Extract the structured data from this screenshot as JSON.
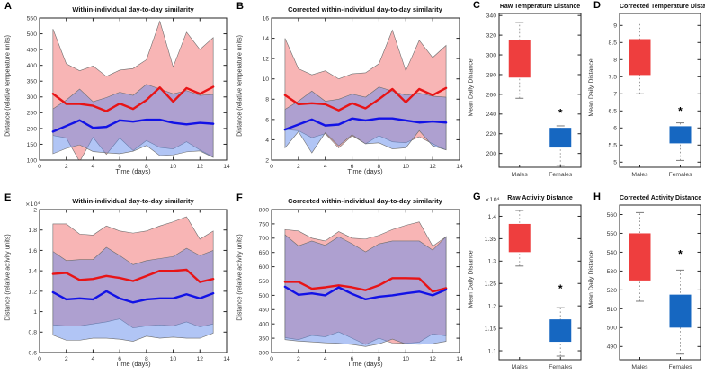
{
  "figure": {
    "background": "#ffffff"
  },
  "colors": {
    "male_line": "#e81416",
    "female_line": "#1212e6",
    "male_band": "rgba(242,108,108,0.5)",
    "female_band": "rgba(100,140,235,0.5)",
    "male_box": "#ee3e3e",
    "female_box": "#1667c1",
    "band_edge": "#6e6e6e",
    "axis": "#262626"
  },
  "chart_data": [
    {
      "id": "A",
      "letter": "A",
      "type": "area",
      "title": "Within-individual day-to-day similarity",
      "xlabel": "Time (days)",
      "ylabel": "Distance (relative temperature units)",
      "xlim": [
        0,
        14
      ],
      "ylim": [
        100,
        550
      ],
      "xticks": [
        0,
        2,
        4,
        6,
        8,
        10,
        12,
        14
      ],
      "yticks": [
        100,
        150,
        200,
        250,
        300,
        350,
        400,
        450,
        500,
        550
      ],
      "x": [
        1,
        2,
        3,
        4,
        5,
        6,
        7,
        8,
        9,
        10,
        11,
        12,
        13
      ],
      "series": [
        {
          "name": "males-mean",
          "color": "#e81416",
          "values": [
            310,
            278,
            278,
            272,
            255,
            279,
            262,
            290,
            330,
            285,
            328,
            310,
            332
          ]
        },
        {
          "name": "females-mean",
          "color": "#1212e6",
          "values": [
            190,
            208,
            226,
            202,
            205,
            226,
            222,
            228,
            228,
            218,
            213,
            218,
            215
          ]
        }
      ],
      "bands": [
        {
          "name": "males-band",
          "fill": "rgba(242,108,108,0.5)",
          "edge": "#6e6e6e",
          "upper": [
            515,
            405,
            383,
            398,
            365,
            385,
            390,
            418,
            540,
            395,
            505,
            450,
            488
          ],
          "lower": [
            178,
            170,
            95,
            172,
            118,
            170,
            130,
            162,
            140,
            135,
            158,
            132,
            110
          ]
        },
        {
          "name": "females-band",
          "fill": "rgba(100,140,235,0.5)",
          "edge": "#6e6e6e",
          "upper": [
            262,
            290,
            325,
            285,
            298,
            315,
            305,
            340,
            325,
            310,
            320,
            305,
            308
          ],
          "lower": [
            120,
            137,
            148,
            127,
            123,
            120,
            128,
            146,
            114,
            116,
            126,
            129,
            108
          ]
        }
      ]
    },
    {
      "id": "B",
      "letter": "B",
      "type": "area",
      "title": "Corrected within-individual day-to-day similarity",
      "xlabel": "Time (days)",
      "ylabel": "Distance (relative temperature units)",
      "xlim": [
        0,
        14
      ],
      "ylim": [
        2,
        16
      ],
      "xticks": [
        0,
        2,
        4,
        6,
        8,
        10,
        12,
        14
      ],
      "yticks": [
        2,
        4,
        6,
        8,
        10,
        12,
        14,
        16
      ],
      "x": [
        1,
        2,
        3,
        4,
        5,
        6,
        7,
        8,
        9,
        10,
        11,
        12,
        13
      ],
      "series": [
        {
          "name": "males-mean",
          "color": "#e81416",
          "values": [
            8.4,
            7.5,
            7.6,
            7.5,
            6.9,
            7.6,
            7.1,
            8.0,
            9.0,
            7.7,
            9.0,
            8.4,
            9.1
          ]
        },
        {
          "name": "females-mean",
          "color": "#1212e6",
          "values": [
            5.0,
            5.5,
            6.0,
            5.4,
            5.5,
            6.1,
            5.9,
            6.1,
            6.1,
            5.9,
            5.7,
            5.8,
            5.7
          ]
        }
      ],
      "bands": [
        {
          "name": "males-band",
          "fill": "rgba(242,108,108,0.5)",
          "edge": "#6e6e6e",
          "upper": [
            14.0,
            11.0,
            10.4,
            10.8,
            10.0,
            10.5,
            10.6,
            11.5,
            14.8,
            10.8,
            13.8,
            12.1,
            13.3
          ],
          "lower": [
            5.0,
            4.9,
            4.2,
            4.6,
            3.2,
            4.4,
            3.6,
            4.4,
            3.8,
            3.7,
            4.3,
            3.6,
            3.0
          ]
        },
        {
          "name": "females-band",
          "fill": "rgba(100,140,235,0.5)",
          "edge": "#6e6e6e",
          "upper": [
            7.0,
            7.8,
            8.8,
            7.8,
            8.0,
            8.5,
            8.2,
            9.2,
            8.8,
            8.4,
            8.6,
            8.3,
            8.2
          ],
          "lower": [
            3.2,
            4.8,
            2.7,
            4.7,
            3.4,
            4.5,
            3.6,
            3.7,
            3.1,
            3.2,
            4.9,
            3.4,
            3.0
          ]
        }
      ]
    },
    {
      "id": "C",
      "letter": "C",
      "type": "box",
      "title": "Raw Temperature Distance",
      "ylabel": "Mean Daily Distance",
      "categories": [
        "Males",
        "Females"
      ],
      "ylim": [
        186,
        342
      ],
      "yticks": [
        200,
        220,
        240,
        260,
        280,
        300,
        320,
        340
      ],
      "boxes": [
        {
          "name": "Males",
          "color": "#ee3e3e",
          "q1": 277,
          "q3": 315,
          "whisker_low": 256,
          "whisker_high": 333
        },
        {
          "name": "Females",
          "color": "#1667c1",
          "q1": 206,
          "q3": 226,
          "whisker_low": 188,
          "whisker_high": 228
        }
      ],
      "annotation": {
        "text": "*",
        "category_index": 1,
        "y": 241
      }
    },
    {
      "id": "D",
      "letter": "D",
      "type": "box",
      "title": "Corrected Temperature Distance",
      "ylabel": "Mean Daily Distance",
      "categories": [
        "Males",
        "Females"
      ],
      "ylim": [
        4.85,
        9.35
      ],
      "yticks": [
        5,
        5.5,
        6,
        6.5,
        7,
        7.5,
        8,
        8.5,
        9
      ],
      "boxes": [
        {
          "name": "Males",
          "color": "#ee3e3e",
          "q1": 7.55,
          "q3": 8.6,
          "whisker_low": 7.0,
          "whisker_high": 9.1
        },
        {
          "name": "Females",
          "color": "#1667c1",
          "q1": 5.55,
          "q3": 6.05,
          "whisker_low": 5.05,
          "whisker_high": 6.15
        }
      ],
      "annotation": {
        "text": "*",
        "category_index": 1,
        "y": 6.5
      }
    },
    {
      "id": "E",
      "letter": "E",
      "type": "area",
      "title": "Within-individual day-to-day similarity",
      "xlabel": "Time (days)",
      "ylabel": "Distance (relative activity units)",
      "exponent": "×10⁴",
      "xlim": [
        0,
        14
      ],
      "ylim": [
        0.6,
        2.0
      ],
      "xticks": [
        0,
        2,
        4,
        6,
        8,
        10,
        12,
        14
      ],
      "yticks": [
        0.6,
        0.8,
        1,
        1.2,
        1.4,
        1.6,
        1.8,
        2
      ],
      "x": [
        1,
        2,
        3,
        4,
        5,
        6,
        7,
        8,
        9,
        10,
        11,
        12,
        13
      ],
      "series": [
        {
          "name": "males-mean",
          "color": "#e81416",
          "values": [
            1.37,
            1.38,
            1.31,
            1.32,
            1.35,
            1.33,
            1.3,
            1.35,
            1.4,
            1.4,
            1.41,
            1.29,
            1.32
          ]
        },
        {
          "name": "females-mean",
          "color": "#1212e6",
          "values": [
            1.19,
            1.12,
            1.13,
            1.12,
            1.2,
            1.13,
            1.09,
            1.12,
            1.13,
            1.13,
            1.17,
            1.13,
            1.18
          ]
        }
      ],
      "bands": [
        {
          "name": "males-band",
          "fill": "rgba(242,108,108,0.5)",
          "edge": "#6e6e6e",
          "upper": [
            1.86,
            1.86,
            1.76,
            1.75,
            1.84,
            1.79,
            1.77,
            1.79,
            1.84,
            1.88,
            1.93,
            1.71,
            1.79
          ],
          "lower": [
            0.87,
            0.86,
            0.86,
            0.88,
            0.9,
            0.93,
            0.84,
            0.86,
            0.87,
            0.86,
            0.9,
            0.85,
            0.88
          ]
        },
        {
          "name": "females-band",
          "fill": "rgba(100,140,235,0.5)",
          "edge": "#6e6e6e",
          "upper": [
            1.59,
            1.5,
            1.51,
            1.51,
            1.63,
            1.55,
            1.46,
            1.5,
            1.52,
            1.54,
            1.62,
            1.55,
            1.6
          ],
          "lower": [
            0.77,
            0.72,
            0.72,
            0.74,
            0.74,
            0.73,
            0.71,
            0.76,
            0.74,
            0.75,
            0.74,
            0.74,
            0.79
          ]
        }
      ]
    },
    {
      "id": "F",
      "letter": "F",
      "type": "area",
      "title": "Corrected within-individual day-to-day similarity",
      "xlabel": "Time (days)",
      "ylabel": "Distance (relative activity units)",
      "xlim": [
        0,
        14
      ],
      "ylim": [
        300,
        800
      ],
      "xticks": [
        0,
        2,
        4,
        6,
        8,
        10,
        12,
        14
      ],
      "yticks": [
        300,
        350,
        400,
        450,
        500,
        550,
        600,
        650,
        700,
        750,
        800
      ],
      "x": [
        1,
        2,
        3,
        4,
        5,
        6,
        7,
        8,
        9,
        10,
        11,
        12,
        13
      ],
      "series": [
        {
          "name": "males-mean",
          "color": "#e81416",
          "values": [
            547,
            547,
            523,
            528,
            535,
            528,
            518,
            535,
            560,
            560,
            559,
            513,
            525
          ]
        },
        {
          "name": "females-mean",
          "color": "#1212e6",
          "values": [
            530,
            502,
            507,
            500,
            528,
            505,
            486,
            495,
            500,
            507,
            513,
            500,
            520
          ]
        }
      ],
      "bands": [
        {
          "name": "males-band",
          "fill": "rgba(242,108,108,0.5)",
          "edge": "#6e6e6e",
          "upper": [
            730,
            725,
            700,
            690,
            723,
            700,
            697,
            710,
            730,
            745,
            757,
            672,
            705
          ],
          "lower": [
            352,
            345,
            360,
            355,
            372,
            350,
            328,
            350,
            333,
            332,
            336,
            365,
            358
          ]
        },
        {
          "name": "females-band",
          "fill": "rgba(100,140,235,0.5)",
          "edge": "#6e6e6e",
          "upper": [
            712,
            673,
            690,
            675,
            705,
            680,
            652,
            680,
            690,
            690,
            690,
            658,
            705
          ],
          "lower": [
            345,
            340,
            337,
            334,
            332,
            328,
            321,
            330,
            347,
            330,
            329,
            331,
            339
          ]
        }
      ]
    },
    {
      "id": "G",
      "letter": "G",
      "type": "box",
      "title": "Raw Activity Distance",
      "ylabel": "Mean Daily Distance",
      "exponent": "×10⁴",
      "categories": [
        "Males",
        "Females"
      ],
      "ylim": [
        1.08,
        1.425
      ],
      "yticks": [
        1.1,
        1.15,
        1.2,
        1.25,
        1.3,
        1.35,
        1.4
      ],
      "boxes": [
        {
          "name": "Males",
          "color": "#ee3e3e",
          "q1": 1.32,
          "q3": 1.383,
          "whisker_low": 1.289,
          "whisker_high": 1.413
        },
        {
          "name": "Females",
          "color": "#1667c1",
          "q1": 1.12,
          "q3": 1.17,
          "whisker_low": 1.088,
          "whisker_high": 1.196
        }
      ],
      "annotation": {
        "text": "*",
        "category_index": 1,
        "y": 1.238
      }
    },
    {
      "id": "H",
      "letter": "H",
      "type": "box",
      "title": "Corrected Activity Distance",
      "ylabel": "Mean Daily Distance",
      "categories": [
        "Males",
        "Females"
      ],
      "ylim": [
        483,
        565
      ],
      "yticks": [
        490,
        500,
        510,
        520,
        530,
        540,
        550,
        560
      ],
      "boxes": [
        {
          "name": "Males",
          "color": "#ee3e3e",
          "q1": 525,
          "q3": 550,
          "whisker_low": 514,
          "whisker_high": 561
        },
        {
          "name": "Females",
          "color": "#1667c1",
          "q1": 500,
          "q3": 517.5,
          "whisker_low": 486,
          "whisker_high": 530.5
        }
      ],
      "annotation": {
        "text": "*",
        "category_index": 1,
        "y": 539
      }
    }
  ]
}
